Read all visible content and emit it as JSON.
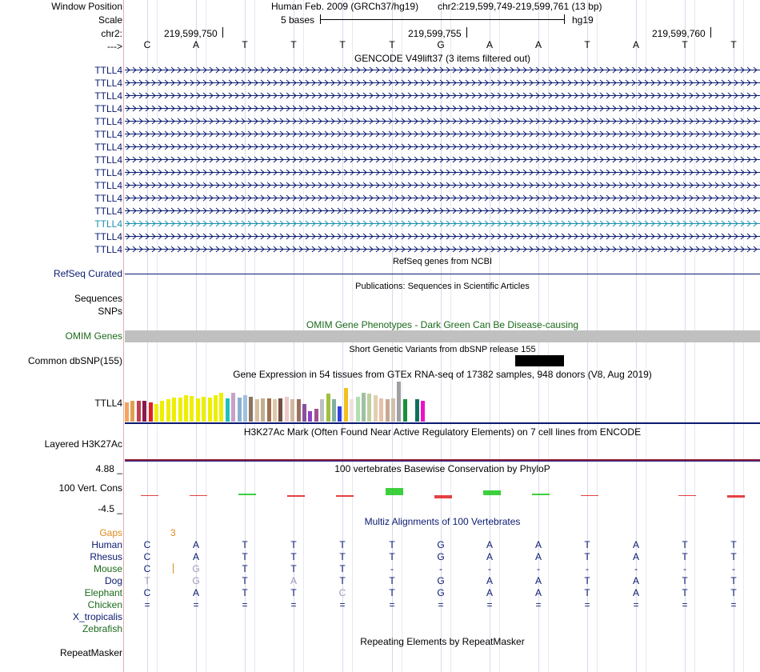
{
  "header": {
    "window_position_label": "Window Position",
    "scale_label": "Scale",
    "chrom_label": "chr2:",
    "strand_label": "--->",
    "assembly": "Human Feb. 2009 (GRCh37/hg19)",
    "position": "chr2:219,599,749-219,599,761 (13 bp)",
    "scale_text": "5 bases",
    "scale_db": "hg19",
    "ruler_ticks": [
      "219,599,750",
      "219,599,755",
      "219,599,760"
    ]
  },
  "sequence": [
    "C",
    "A",
    "T",
    "T",
    "T",
    "T",
    "G",
    "A",
    "A",
    "T",
    "A",
    "T",
    "T"
  ],
  "gencode": {
    "title": "GENCODE V49lift37 (3 items filtered out)",
    "items": [
      "TTLL4",
      "TTLL4",
      "TTLL4",
      "TTLL4",
      "TTLL4",
      "TTLL4",
      "TTLL4",
      "TTLL4",
      "TTLL4",
      "TTLL4",
      "TTLL4",
      "TTLL4",
      "TTLL4",
      "TTLL4",
      "TTLL4"
    ],
    "highlight_index": 12,
    "colors": {
      "normal": "#0a1a70",
      "highlight": "#1a8fb0"
    }
  },
  "refseq": {
    "title": "RefSeq genes from NCBI",
    "label": "RefSeq Curated",
    "color": "#0a1a70"
  },
  "publications": {
    "title": "Publications: Sequences in Scientific Articles",
    "label_sequences": "Sequences",
    "label_snps": "SNPs"
  },
  "omim": {
    "title": "OMIM Gene Phenotypes - Dark Green Can Be Disease-causing",
    "label": "OMIM Genes",
    "color": "#1a6a1a"
  },
  "dbsnp": {
    "title": "Short Genetic Variants from dbSNP release 155",
    "label": "Common dbSNP(155)"
  },
  "gtex": {
    "title": "Gene Expression in 54 tissues from GTEx RNA-seq of 17382 samples, 948 donors (V8, Aug 2019)",
    "label": "TTLL4",
    "bars": [
      {
        "c": "#f4a460",
        "v": 0.48
      },
      {
        "c": "#e0a050",
        "v": 0.52
      },
      {
        "c": "#c04050",
        "v": 0.52
      },
      {
        "c": "#8b1a4a",
        "v": 0.52
      },
      {
        "c": "#e02020",
        "v": 0.48
      },
      {
        "c": "#eeee00",
        "v": 0.44
      },
      {
        "c": "#eeee00",
        "v": 0.52
      },
      {
        "c": "#eeee00",
        "v": 0.56
      },
      {
        "c": "#eeee00",
        "v": 0.6
      },
      {
        "c": "#eeee00",
        "v": 0.6
      },
      {
        "c": "#eeee00",
        "v": 0.66
      },
      {
        "c": "#eeee00",
        "v": 0.64
      },
      {
        "c": "#eeee00",
        "v": 0.58
      },
      {
        "c": "#eeee00",
        "v": 0.62
      },
      {
        "c": "#eeee00",
        "v": 0.6
      },
      {
        "c": "#eeee00",
        "v": 0.66
      },
      {
        "c": "#eeee00",
        "v": 0.72
      },
      {
        "c": "#20c0c0",
        "v": 0.58
      },
      {
        "c": "#c8a0c8",
        "v": 0.72
      },
      {
        "c": "#8ab0d0",
        "v": 0.6
      },
      {
        "c": "#a0c0e0",
        "v": 0.66
      },
      {
        "c": "#8a7560",
        "v": 0.62
      },
      {
        "c": "#d8c0a0",
        "v": 0.56
      },
      {
        "c": "#c0b090",
        "v": 0.58
      },
      {
        "c": "#a07050",
        "v": 0.58
      },
      {
        "c": "#e0c8a8",
        "v": 0.56
      },
      {
        "c": "#705040",
        "v": 0.58
      },
      {
        "c": "#f0c8c8",
        "v": 0.62
      },
      {
        "c": "#d0b8a0",
        "v": 0.56
      },
      {
        "c": "#9a7060",
        "v": 0.56
      },
      {
        "c": "#8a50a0",
        "v": 0.44
      },
      {
        "c": "#9040c0",
        "v": 0.26
      },
      {
        "c": "#a05090",
        "v": 0.32
      },
      {
        "c": "#c0c0c0",
        "v": 0.56
      },
      {
        "c": "#a0c040",
        "v": 0.7
      },
      {
        "c": "#80b0a0",
        "v": 0.56
      },
      {
        "c": "#3040e0",
        "v": 0.38
      },
      {
        "c": "#f0c020",
        "v": 0.84
      },
      {
        "c": "#f0e0e0",
        "v": 0.56
      },
      {
        "c": "#b0e0b0",
        "v": 0.62
      },
      {
        "c": "#a0c0a0",
        "v": 0.72
      },
      {
        "c": "#c0d0a0",
        "v": 0.7
      },
      {
        "c": "#e0d0b0",
        "v": 0.66
      },
      {
        "c": "#e8c0a8",
        "v": 0.58
      },
      {
        "c": "#c8a890",
        "v": 0.56
      },
      {
        "c": "#d0c0b0",
        "v": 0.58
      },
      {
        "c": "#a0a0a0",
        "v": 1.0
      },
      {
        "c": "#1a8f3a",
        "v": 0.56
      },
      {
        "c": "#e0e0e0",
        "v": 0.0
      },
      {
        "c": "#107060",
        "v": 0.56
      },
      {
        "c": "#ee10c8",
        "v": 0.52
      }
    ]
  },
  "h3k27ac": {
    "title": "H3K27Ac Mark (Often Found Near Active Regulatory Elements) on 7 cell lines from ENCODE",
    "label": "Layered H3K27Ac"
  },
  "phylop": {
    "title": "100 vertebrates Basewise Conservation by PhyloP",
    "label": "100 Vert. Cons",
    "max_label": "4.88 _",
    "min_label": "-4.5 _",
    "title_color": "#3a3aa0",
    "max_color": "#3a3aa0",
    "min_color": "#a03030",
    "values": [
      -0.05,
      -0.1,
      0.15,
      -0.15,
      -0.15,
      0.9,
      -1.0,
      0.6,
      0.2,
      -0.1,
      0.0,
      -0.1,
      -0.3
    ]
  },
  "multiz": {
    "title": "Multiz Alignments of 100 Vertebrates",
    "gaps_label": "Gaps",
    "gap_number": "3",
    "species": [
      {
        "name": "Human",
        "color": "#0a1a70",
        "bases": [
          "C",
          "A",
          "T",
          "T",
          "T",
          "T",
          "G",
          "A",
          "A",
          "T",
          "A",
          "T",
          "T"
        ]
      },
      {
        "name": "Rhesus",
        "color": "#0a1a70",
        "bases": [
          "C",
          "A",
          "T",
          "T",
          "T",
          "T",
          "G",
          "A",
          "A",
          "T",
          "A",
          "T",
          "T"
        ]
      },
      {
        "name": "Mouse",
        "color": "#1a6a1a",
        "bases": [
          "C",
          "G",
          "T",
          "T",
          "T",
          "-",
          "-",
          "-",
          "-",
          "-",
          "-",
          "-",
          "-"
        ]
      },
      {
        "name": "Dog",
        "color": "#0a1a70",
        "bases": [
          "T",
          "G",
          "T",
          "A",
          "T",
          "T",
          "G",
          "A",
          "A",
          "T",
          "A",
          "T",
          "T"
        ]
      },
      {
        "name": "Elephant",
        "color": "#1a6a1a",
        "bases": [
          "C",
          "A",
          "T",
          "T",
          "C",
          "T",
          "G",
          "A",
          "A",
          "T",
          "A",
          "T",
          "T"
        ]
      },
      {
        "name": "Chicken",
        "color": "#1a6a1a",
        "bases": [
          "=",
          "=",
          "=",
          "=",
          "=",
          "=",
          "=",
          "=",
          "=",
          "=",
          "=",
          "=",
          "="
        ]
      },
      {
        "name": "X_tropicalis",
        "color": "#0a1a70",
        "bases": []
      },
      {
        "name": "Zebrafish",
        "color": "#1a6a1a",
        "bases": []
      }
    ]
  },
  "repeatmasker": {
    "title": "Repeating Elements by RepeatMasker",
    "label": "RepeatMasker"
  }
}
